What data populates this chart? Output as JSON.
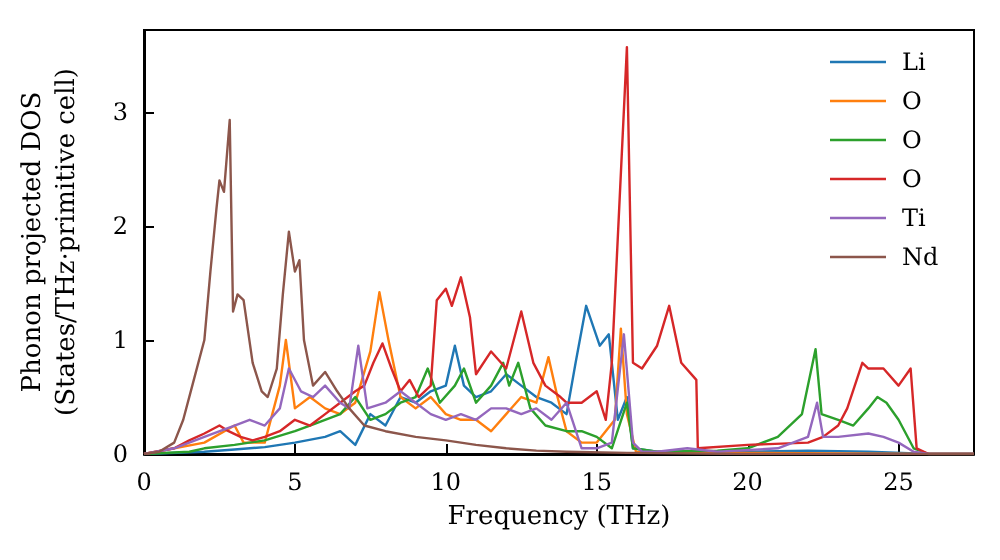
{
  "chart_data": {
    "type": "line",
    "xlabel": "Frequency (THz)",
    "ylabel": "Phonon projected DOS\n(States/THz·primitive cell)",
    "xlim": [
      0,
      27.5
    ],
    "xticks": [
      0,
      5,
      10,
      15,
      20,
      25
    ],
    "ylim": [
      0,
      3.72
    ],
    "yticks": [
      0,
      1,
      2,
      3
    ],
    "grid": false,
    "legend": "top right",
    "marker": "none",
    "line_style": "solid",
    "series": [
      {
        "name": "Li",
        "color": "#1f77b4",
        "x": [
          0,
          2,
          3,
          4,
          5,
          6,
          6.5,
          7,
          7.5,
          8,
          8.5,
          9,
          9.5,
          10,
          10.3,
          10.6,
          11,
          11.5,
          12,
          12.5,
          13,
          13.5,
          14,
          14.3,
          14.65,
          15.1,
          15.4,
          15.7,
          16,
          16.2,
          17,
          20,
          22,
          24,
          26,
          27.5
        ],
        "values": [
          0,
          0.02,
          0.04,
          0.06,
          0.1,
          0.15,
          0.2,
          0.08,
          0.35,
          0.25,
          0.5,
          0.45,
          0.55,
          0.6,
          0.95,
          0.6,
          0.5,
          0.55,
          0.7,
          0.6,
          0.5,
          0.45,
          0.35,
          0.8,
          1.3,
          0.95,
          1.05,
          0.3,
          0.5,
          0.05,
          0.02,
          0.02,
          0.03,
          0.02,
          0,
          0
        ]
      },
      {
        "name": "O",
        "color": "#ff7f0e",
        "x": [
          0,
          2,
          3,
          3.3,
          4,
          4.5,
          4.7,
          5,
          5.5,
          6,
          6.5,
          7,
          7.5,
          7.8,
          8.1,
          8.5,
          9,
          9.5,
          10,
          10.5,
          11,
          11.5,
          12,
          12.5,
          13,
          13.4,
          13.7,
          14,
          14.5,
          15,
          15.6,
          15.8,
          16,
          16.3,
          20,
          26,
          27.5
        ],
        "values": [
          0,
          0.1,
          0.25,
          0.1,
          0.1,
          0.6,
          1.0,
          0.4,
          0.5,
          0.4,
          0.35,
          0.45,
          0.9,
          1.42,
          1.0,
          0.5,
          0.4,
          0.5,
          0.35,
          0.3,
          0.3,
          0.2,
          0.35,
          0.5,
          0.45,
          0.85,
          0.5,
          0.2,
          0.1,
          0.1,
          0.3,
          1.1,
          0.35,
          0.02,
          0.01,
          0,
          0
        ]
      },
      {
        "name": "O",
        "color": "#2ca02c",
        "x": [
          0,
          1.5,
          2,
          3,
          4,
          5,
          5.5,
          6,
          6.5,
          7,
          7.5,
          8,
          8.5,
          9,
          9.4,
          9.8,
          10.3,
          10.6,
          11,
          11.5,
          11.9,
          12.1,
          12.4,
          12.8,
          13.3,
          14,
          14.5,
          15,
          15.5,
          16,
          16.2,
          17,
          19,
          20,
          21,
          21.8,
          22.25,
          22.45,
          23,
          23.5,
          24,
          24.3,
          24.6,
          25,
          25.5,
          26,
          27.5
        ],
        "values": [
          0,
          0.02,
          0.05,
          0.08,
          0.12,
          0.2,
          0.25,
          0.3,
          0.35,
          0.5,
          0.3,
          0.35,
          0.45,
          0.5,
          0.75,
          0.45,
          0.6,
          0.75,
          0.45,
          0.6,
          0.8,
          0.6,
          0.8,
          0.4,
          0.25,
          0.2,
          0.2,
          0.15,
          0.05,
          0.45,
          0.05,
          0.02,
          0.03,
          0.05,
          0.15,
          0.35,
          0.92,
          0.35,
          0.3,
          0.25,
          0.4,
          0.5,
          0.45,
          0.3,
          0.05,
          0,
          0
        ]
      },
      {
        "name": "O",
        "color": "#d62728",
        "x": [
          0,
          1,
          1.5,
          2,
          2.5,
          2.8,
          3.2,
          3.6,
          4,
          4.5,
          5,
          5.5,
          6,
          6.5,
          7,
          7.3,
          7.6,
          7.9,
          8.2,
          8.5,
          8.8,
          9.1,
          9.5,
          9.7,
          10,
          10.2,
          10.5,
          10.8,
          11,
          11.5,
          12,
          12.5,
          12.9,
          13.3,
          13.8,
          14,
          14.5,
          15,
          15.3,
          15.5,
          16.0,
          16.2,
          16.5,
          17,
          17.4,
          17.8,
          18.3,
          18.35,
          20,
          22,
          22.5,
          23,
          23.3,
          23.8,
          24,
          24.5,
          25,
          25.4,
          25.6,
          26,
          27.5
        ],
        "values": [
          0,
          0.05,
          0.12,
          0.18,
          0.25,
          0.2,
          0.15,
          0.12,
          0.15,
          0.2,
          0.3,
          0.25,
          0.35,
          0.45,
          0.55,
          0.6,
          0.8,
          0.97,
          0.75,
          0.55,
          0.65,
          0.5,
          0.6,
          1.35,
          1.45,
          1.3,
          1.55,
          1.2,
          0.7,
          0.9,
          0.75,
          1.25,
          0.8,
          0.6,
          0.5,
          0.45,
          0.45,
          0.55,
          0.3,
          0.8,
          3.57,
          0.8,
          0.75,
          0.95,
          1.3,
          0.8,
          0.65,
          0.05,
          0.08,
          0.1,
          0.15,
          0.25,
          0.4,
          0.8,
          0.75,
          0.75,
          0.6,
          0.75,
          0.05,
          0,
          0
        ]
      },
      {
        "name": "Ti",
        "color": "#9467bd",
        "x": [
          0,
          1,
          2,
          3,
          3.5,
          4,
          4.5,
          4.8,
          5.2,
          5.6,
          6,
          6.5,
          6.8,
          7.1,
          7.4,
          8,
          8.5,
          9,
          9.5,
          10,
          10.5,
          11,
          11.5,
          12,
          12.5,
          13,
          13.5,
          14,
          14.5,
          15,
          15.5,
          15.9,
          16.2,
          16.5,
          17,
          18,
          19,
          21,
          22,
          22.3,
          22.5,
          23,
          24,
          24.5,
          25,
          25.5,
          26,
          27.5
        ],
        "values": [
          0,
          0.05,
          0.15,
          0.25,
          0.3,
          0.25,
          0.4,
          0.75,
          0.55,
          0.5,
          0.6,
          0.45,
          0.4,
          0.95,
          0.4,
          0.45,
          0.55,
          0.45,
          0.35,
          0.3,
          0.35,
          0.3,
          0.4,
          0.4,
          0.35,
          0.4,
          0.3,
          0.45,
          0.05,
          0.05,
          0.1,
          1.05,
          0.1,
          0.02,
          0.02,
          0.05,
          0.02,
          0.05,
          0.15,
          0.45,
          0.15,
          0.15,
          0.18,
          0.15,
          0.1,
          0.02,
          0,
          0
        ]
      },
      {
        "name": "Nd",
        "color": "#8c564b",
        "x": [
          0,
          0.5,
          1,
          1.3,
          1.6,
          2,
          2.2,
          2.4,
          2.5,
          2.65,
          2.84,
          2.95,
          3.1,
          3.3,
          3.6,
          3.9,
          4.1,
          4.4,
          4.6,
          4.8,
          5.0,
          5.15,
          5.3,
          5.6,
          6.0,
          6.4,
          6.8,
          7.3,
          8,
          9,
          10,
          11,
          12,
          13,
          14,
          16,
          20,
          27.5
        ],
        "values": [
          0,
          0.02,
          0.1,
          0.3,
          0.6,
          1.0,
          1.6,
          2.15,
          2.4,
          2.3,
          2.93,
          1.25,
          1.4,
          1.35,
          0.8,
          0.55,
          0.5,
          0.75,
          1.4,
          1.95,
          1.6,
          1.7,
          1.0,
          0.6,
          0.72,
          0.55,
          0.4,
          0.25,
          0.2,
          0.15,
          0.12,
          0.08,
          0.05,
          0.03,
          0.02,
          0.01,
          0,
          0
        ]
      }
    ]
  }
}
